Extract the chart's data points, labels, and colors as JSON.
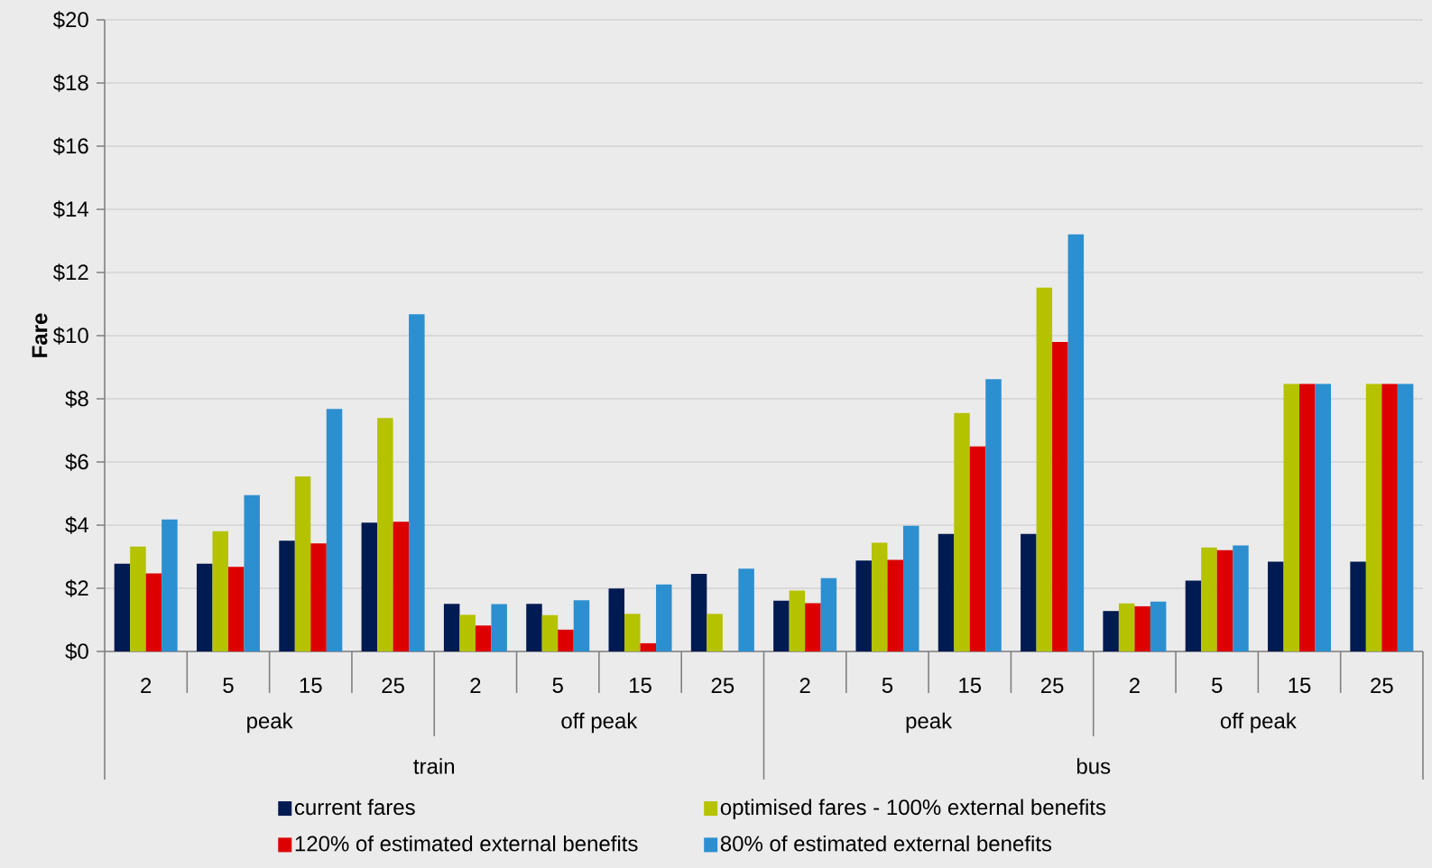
{
  "chart_data": {
    "type": "bar",
    "ylabel": "Fare",
    "categories": [
      "2",
      "5",
      "15",
      "25",
      "2",
      "5",
      "15",
      "25",
      "2",
      "5",
      "15",
      "25",
      "2",
      "5",
      "15",
      "25"
    ],
    "annotations": [
      "peak",
      "off peak",
      "peak",
      "off peak",
      "train",
      "bus"
    ],
    "ylim": [
      0,
      20
    ],
    "yticks": [
      {
        "value": 0,
        "label": "$0"
      },
      {
        "value": 2,
        "label": "$2"
      },
      {
        "value": 4,
        "label": "$4"
      },
      {
        "value": 6,
        "label": "$6"
      },
      {
        "value": 8,
        "label": "$8"
      },
      {
        "value": 10,
        "label": "$10"
      },
      {
        "value": 12,
        "label": "$12"
      },
      {
        "value": 14,
        "label": "$14"
      },
      {
        "value": 16,
        "label": "$16"
      },
      {
        "value": 18,
        "label": "$18"
      },
      {
        "value": 20,
        "label": "$20"
      }
    ],
    "grid": "y",
    "legend": "bottom",
    "series": [
      {
        "name": "current fares",
        "color": "#001a52",
        "values": [
          2.78,
          2.78,
          3.51,
          4.08,
          1.51,
          1.51,
          1.99,
          2.46,
          1.61,
          2.88,
          3.72,
          3.72,
          1.28,
          2.24,
          2.84,
          2.84
        ]
      },
      {
        "name": "optimised fares - 100% external benefits",
        "color": "#b5c200",
        "values": [
          3.32,
          3.81,
          5.54,
          7.39,
          1.16,
          1.15,
          1.19,
          1.19,
          1.93,
          3.44,
          7.55,
          11.52,
          1.52,
          3.29,
          8.47,
          8.47
        ]
      },
      {
        "name": "120% of estimated external benefits",
        "color": "#dd0000",
        "values": [
          2.47,
          2.68,
          3.42,
          4.11,
          0.82,
          0.69,
          0.26,
          null,
          1.53,
          2.9,
          6.49,
          9.8,
          1.43,
          3.21,
          8.47,
          8.47
        ]
      },
      {
        "name": "80% of estimated external benefits",
        "color": "#2c8fd0",
        "values": [
          4.18,
          4.95,
          7.68,
          10.68,
          1.5,
          1.62,
          2.12,
          2.62,
          2.32,
          3.98,
          8.62,
          13.21,
          1.58,
          3.36,
          8.47,
          8.47
        ]
      }
    ]
  }
}
